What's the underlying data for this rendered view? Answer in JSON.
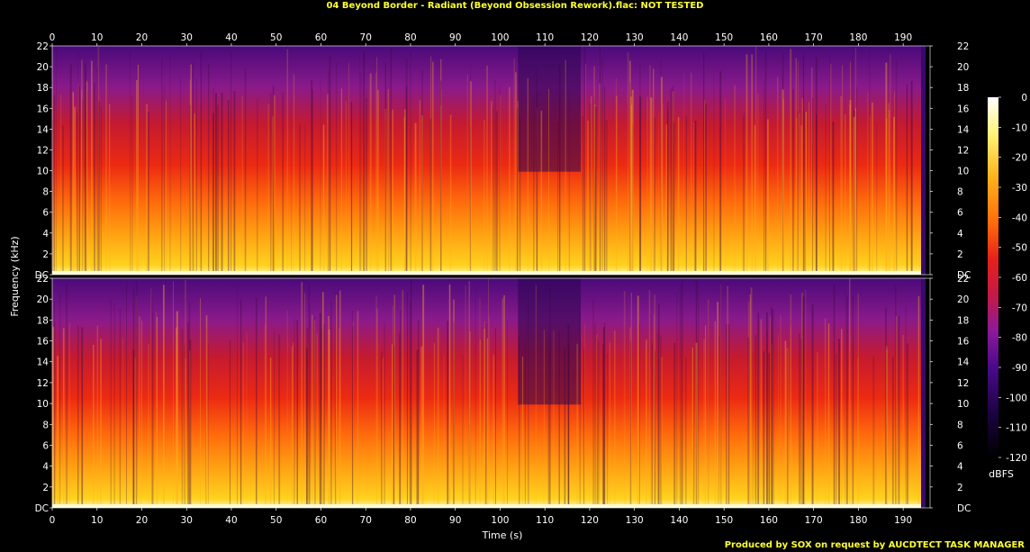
{
  "window": {
    "title": "04 Beyond Border - Radiant (Beyond Obsession Rework).flac: NOT TESTED",
    "footer": "Produced by SOX on request by AUCDTECT TASK MANAGER"
  },
  "chart_data": {
    "type": "heatmap",
    "title": "04 Beyond Border - Radiant (Beyond Obsession Rework).flac: NOT TESTED",
    "xlabel": "Time (s)",
    "ylabel": "Frequency (kHz)",
    "colorbar_label": "dBFS",
    "xlim": [
      0,
      196
    ],
    "ylim": [
      0,
      22
    ],
    "x_ticks": [
      0,
      10,
      20,
      30,
      40,
      50,
      60,
      70,
      80,
      90,
      100,
      110,
      120,
      130,
      140,
      150,
      160,
      170,
      180,
      190
    ],
    "y_ticks": [
      "DC",
      "2",
      "4",
      "6",
      "8",
      "10",
      "12",
      "14",
      "16",
      "18",
      "20",
      "22"
    ],
    "colorbar_ticks": [
      0,
      -10,
      -20,
      -30,
      -40,
      -50,
      -60,
      -70,
      -80,
      -90,
      -100,
      -110,
      -120
    ],
    "channels": [
      "Channel 1",
      "Channel 2"
    ],
    "audio_end_seconds": 194,
    "quiet_segments_seconds": [
      [
        104,
        118
      ]
    ],
    "colormap": [
      "#000000",
      "#1a0340",
      "#4a0a8a",
      "#8a1a9a",
      "#c81a46",
      "#e6201a",
      "#ff5a0a",
      "#ff9a10",
      "#ffd21e",
      "#ffffff"
    ],
    "grid": false,
    "legend": "right"
  }
}
